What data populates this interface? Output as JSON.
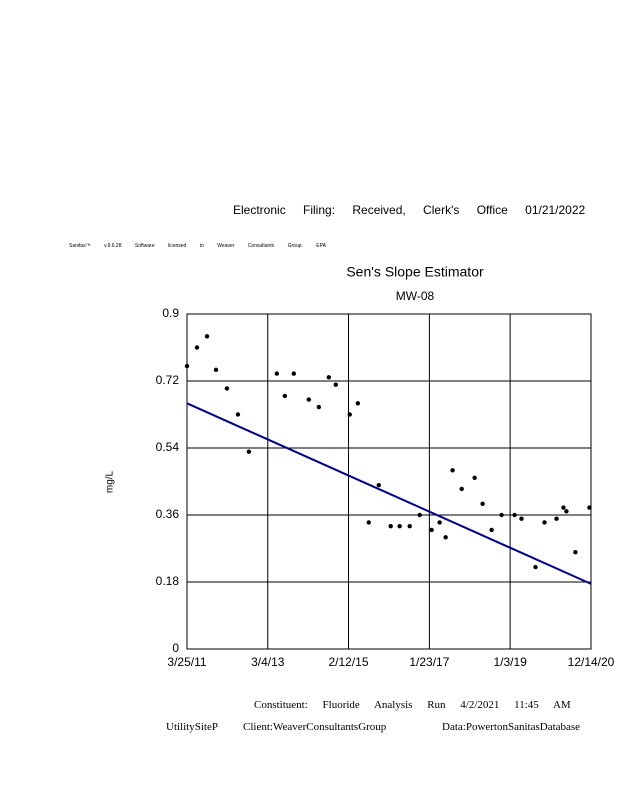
{
  "header": {
    "filing": "Electronic Filing: Received, Clerk's Office 01/21/2022",
    "license": "Sanitas™ v.9.6.28 Software licensed to Weaver Consultants Group. EPA"
  },
  "footer": {
    "run": "Constituent: Fluoride Analysis Run 4/2/2021 11:45 AM",
    "site": "UtilitySiteP",
    "client": "Client:WeaverConsultantsGroup",
    "data": "Data:PowertonSanitasDatabase"
  },
  "chart_data": {
    "type": "scatter",
    "title": "Sen's Slope Estimator",
    "subtitle": "MW-08",
    "ylabel": "mg/L",
    "xlim": [
      "2011-03-25",
      "2020-12-14"
    ],
    "xticks": [
      {
        "value": "2011-03-25",
        "label": "3/25/11"
      },
      {
        "value": "2013-03-04",
        "label": "3/4/13"
      },
      {
        "value": "2015-02-12",
        "label": "2/12/15"
      },
      {
        "value": "2017-01-23",
        "label": "1/23/17"
      },
      {
        "value": "2019-01-03",
        "label": "1/3/19"
      },
      {
        "value": "2020-12-14",
        "label": "12/14/20"
      }
    ],
    "ylim": [
      0,
      0.9
    ],
    "yticks": [
      0,
      0.18,
      0.36,
      0.54,
      0.72,
      0.9
    ],
    "grid": true,
    "series": [
      {
        "style": "points",
        "color": "#000000",
        "x": [
          "2011-03-25",
          "2011-06-21",
          "2011-09-17",
          "2011-12-05",
          "2012-03-10",
          "2012-06-15",
          "2012-09-19",
          "2013-05-23",
          "2013-08-01",
          "2013-10-19",
          "2014-02-28",
          "2014-05-27",
          "2014-08-23",
          "2014-10-23",
          "2015-02-23",
          "2015-05-05",
          "2015-08-09",
          "2015-11-05",
          "2016-02-18",
          "2016-05-07",
          "2016-08-03",
          "2016-10-30",
          "2017-02-12",
          "2017-04-23",
          "2017-06-15",
          "2017-08-15",
          "2017-11-03",
          "2018-02-25",
          "2018-05-06",
          "2018-07-24",
          "2018-10-20",
          "2019-02-11",
          "2019-04-13",
          "2019-08-14",
          "2019-11-01",
          "2020-02-15",
          "2020-04-16",
          "2020-05-12",
          "2020-07-30",
          "2020-11-30"
        ],
        "values": [
          0.76,
          0.81,
          0.84,
          0.75,
          0.7,
          0.63,
          0.53,
          0.74,
          0.68,
          0.74,
          0.67,
          0.65,
          0.73,
          0.71,
          0.63,
          0.66,
          0.34,
          0.44,
          0.33,
          0.33,
          0.33,
          0.36,
          0.32,
          0.34,
          0.3,
          0.48,
          0.43,
          0.46,
          0.39,
          0.32,
          0.36,
          0.36,
          0.35,
          0.22,
          0.34,
          0.35,
          0.38,
          0.37,
          0.26,
          0.38
        ]
      },
      {
        "style": "line",
        "color": "#00008b",
        "x": [
          "2011-03-25",
          "2020-12-14"
        ],
        "values": [
          0.66,
          0.175
        ]
      }
    ]
  }
}
